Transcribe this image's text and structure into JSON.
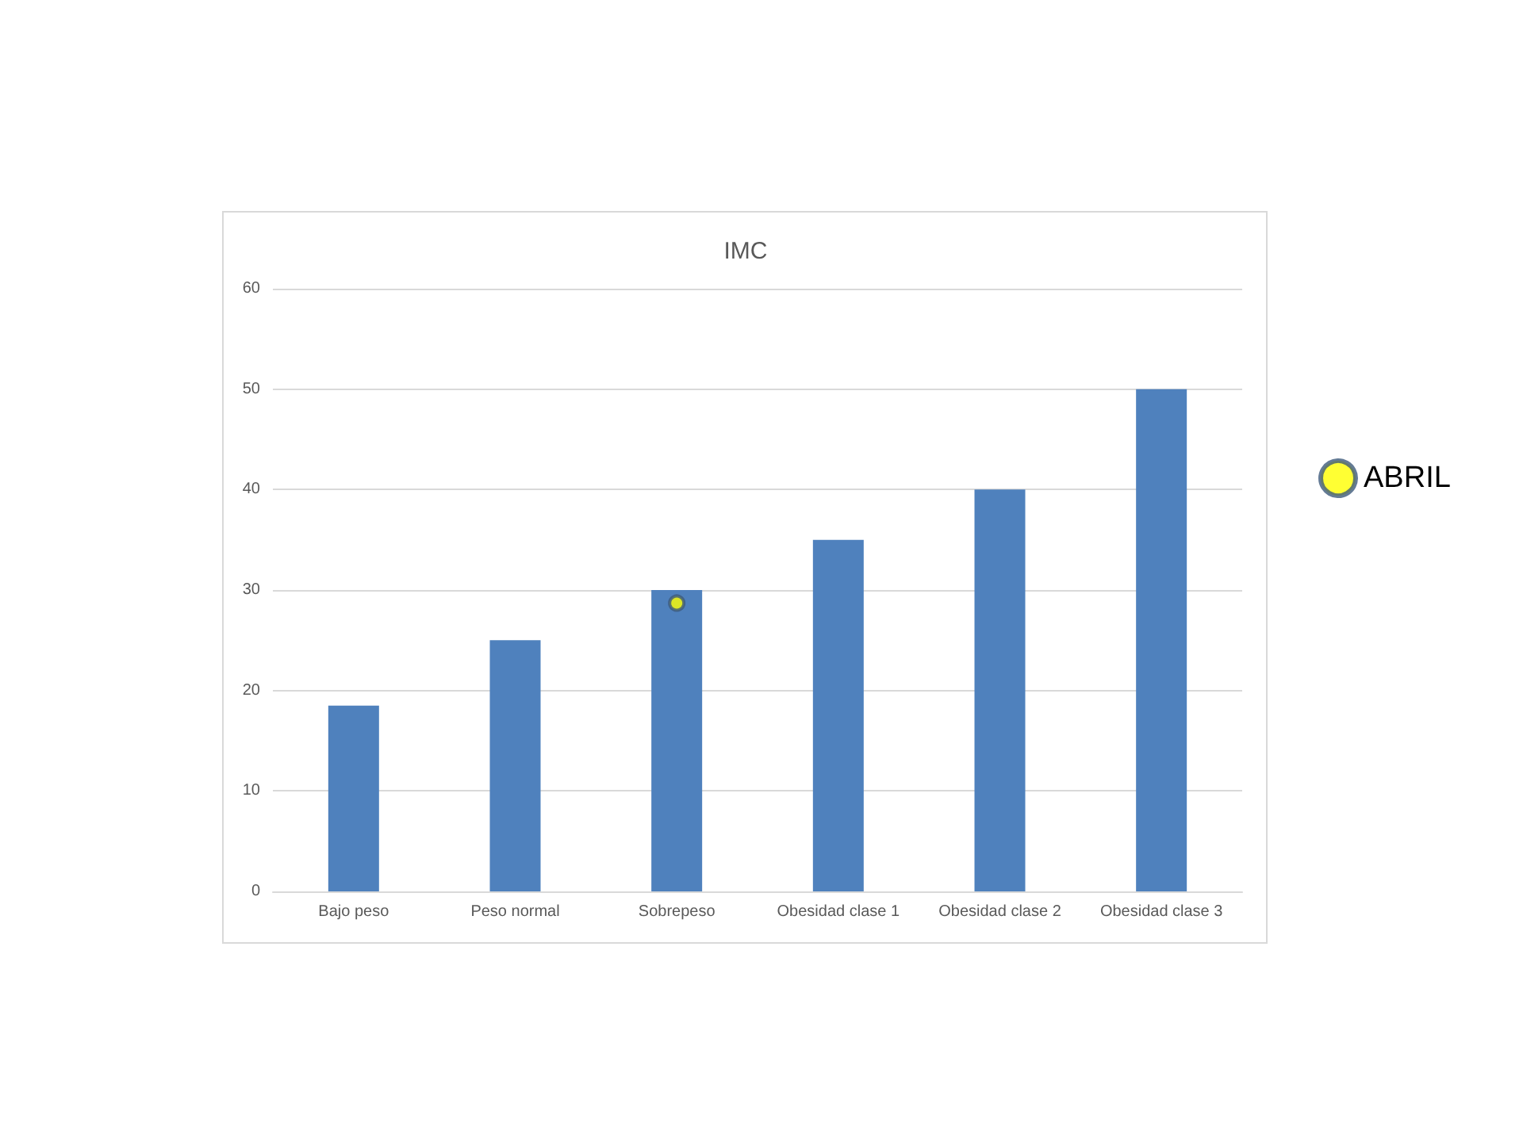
{
  "chart_data": {
    "type": "bar",
    "title": "IMC",
    "categories": [
      "Bajo peso",
      "Peso normal",
      "Sobrepeso",
      "Obesidad clase 1",
      "Obesidad clase 2",
      "Obesidad clase 3"
    ],
    "series": [
      {
        "color": "#4f81bd",
        "values": [
          18.5,
          25,
          30,
          35,
          40,
          50
        ]
      },
      {
        "type": "scatter",
        "name": "ABRIL",
        "color": "#ffff00",
        "marker": "circle",
        "x": [
          "Sobrepeso"
        ],
        "values": [
          28.7
        ]
      }
    ],
    "ylim": [
      0,
      60
    ],
    "yticks": [
      0,
      10,
      20,
      30,
      40,
      50,
      60
    ],
    "grid": "y",
    "legend": "right"
  }
}
